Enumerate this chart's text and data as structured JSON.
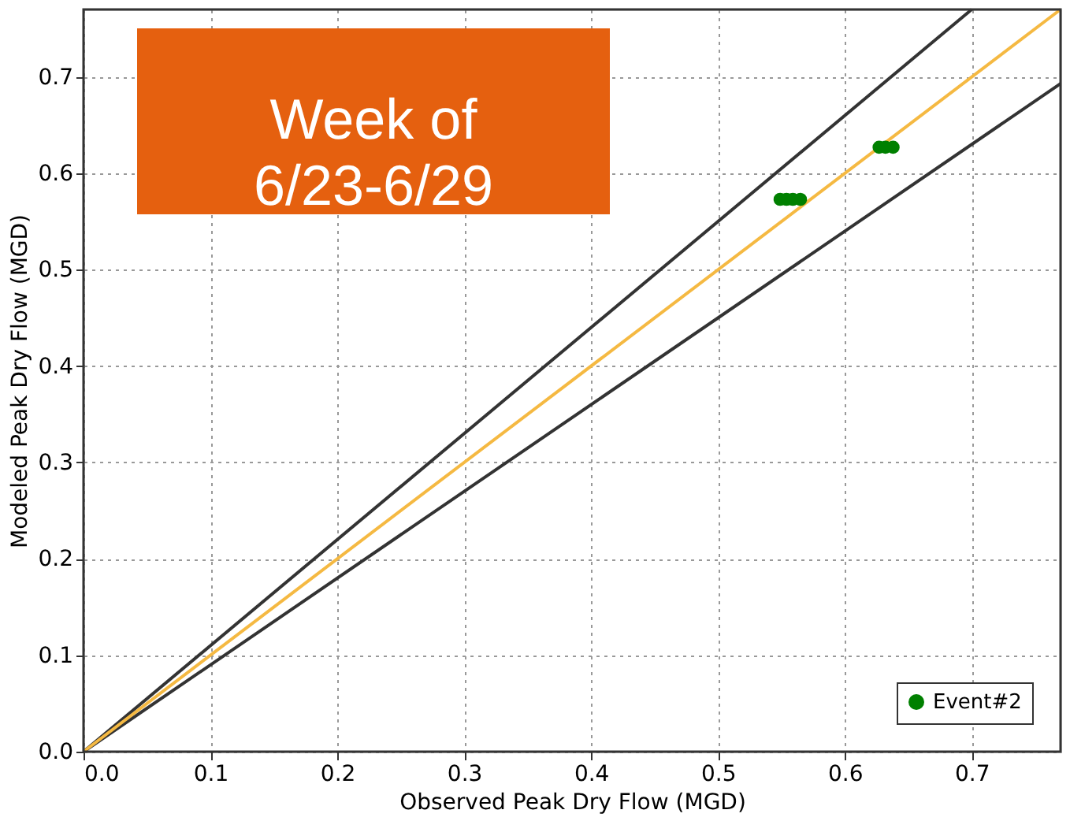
{
  "chart_data": {
    "type": "scatter",
    "xlabel": "Observed Peak Dry Flow (MGD)",
    "ylabel": "Modeled Peak Dry Flow (MGD)",
    "annotations": [
      "Week of\n6/23-6/29"
    ],
    "xlim": [
      0,
      0.77
    ],
    "ylim": [
      0,
      0.77
    ],
    "xticks": [
      {
        "value": 0,
        "label": "0.0"
      },
      0.1,
      0.2,
      0.3,
      0.4,
      0.5,
      0.6,
      0.7
    ],
    "yticks": [
      {
        "value": 0,
        "label": "0.0"
      },
      0.1,
      0.2,
      0.3,
      0.4,
      0.5,
      0.6,
      0.7
    ],
    "grid": true,
    "legend": "bottom right",
    "series": [
      {
        "type": "line",
        "color": "#333333",
        "x": [
          0,
          0.7
        ],
        "values": [
          0,
          0.77
        ]
      },
      {
        "type": "line",
        "color": "#333333",
        "x": [
          0,
          0.77
        ],
        "values": [
          0,
          0.693
        ]
      },
      {
        "type": "line",
        "color": "#f5b942",
        "x": [
          0,
          0.77
        ],
        "values": [
          0,
          0.77
        ]
      },
      {
        "name": "Event#2",
        "color": "#008000",
        "marker": "circle",
        "x": [
          0.549,
          0.554,
          0.559,
          0.565,
          0.627,
          0.632,
          0.638
        ],
        "values": [
          0.573,
          0.573,
          0.573,
          0.573,
          0.627,
          0.627,
          0.627
        ]
      }
    ]
  }
}
